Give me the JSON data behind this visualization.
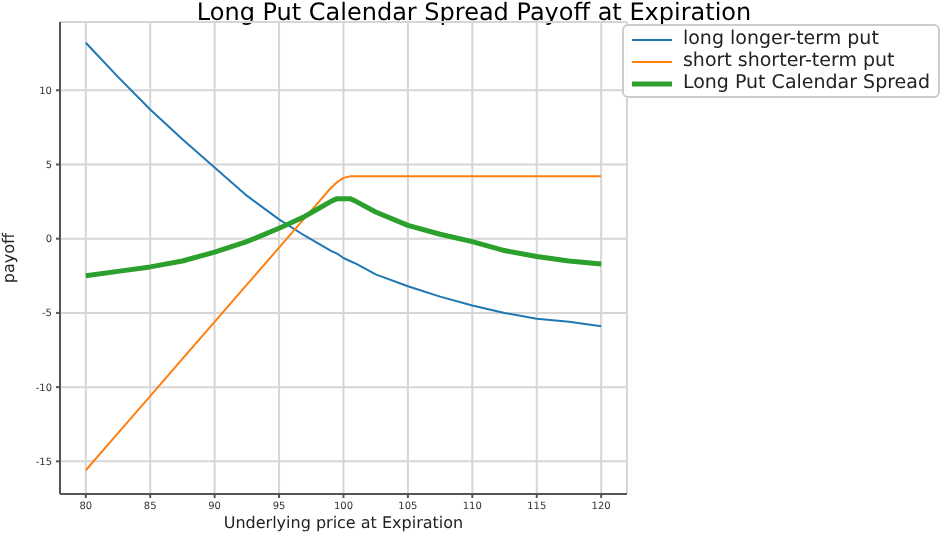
{
  "chart_data": {
    "type": "line",
    "title": "Long Put Calendar Spread Payoff at Expiration",
    "xlabel": "Underlying price at Expiration",
    "ylabel": "payoff",
    "x": [
      80,
      82.5,
      85,
      87.5,
      90,
      92.5,
      95,
      97,
      98,
      99,
      99.5,
      100,
      100.5,
      101,
      102.5,
      105,
      107.5,
      110,
      112.5,
      115,
      117.5,
      120
    ],
    "series": [
      {
        "name": "long longer-term put",
        "color": "#1f77b4",
        "values": [
          13.2,
          10.9,
          8.7,
          6.7,
          4.8,
          2.9,
          1.3,
          0.2,
          -0.3,
          -0.8,
          -1.0,
          -1.3,
          -1.5,
          -1.7,
          -2.4,
          -3.2,
          -3.9,
          -4.5,
          -5.0,
          -5.4,
          -5.6,
          -5.9
        ]
      },
      {
        "name": "short shorter-term put",
        "color": "#ff7f0e",
        "values": [
          -15.6,
          -13.1,
          -10.6,
          -8.1,
          -5.6,
          -3.1,
          -0.6,
          1.4,
          2.4,
          3.4,
          3.8,
          4.1,
          4.2,
          4.2,
          4.2,
          4.2,
          4.2,
          4.2,
          4.2,
          4.2,
          4.2,
          4.2
        ]
      },
      {
        "name": "Long Put Calendar Spread",
        "color": "#2ca02c",
        "values": [
          -2.5,
          -2.2,
          -1.9,
          -1.5,
          -0.9,
          -0.2,
          0.7,
          1.5,
          2.0,
          2.5,
          2.7,
          2.7,
          2.7,
          2.5,
          1.8,
          0.9,
          0.3,
          -0.2,
          -0.8,
          -1.2,
          -1.5,
          -1.7
        ]
      }
    ],
    "xlim": [
      78,
      122
    ],
    "ylim": [
      -17.2,
      14.6
    ],
    "xticks": [
      80,
      85,
      90,
      95,
      100,
      105,
      110,
      115,
      120
    ],
    "yticks": [
      -15,
      -10,
      -5,
      0,
      5,
      10
    ],
    "grid": true,
    "legend": "top right",
    "marker": "none",
    "line_style": "solid"
  }
}
